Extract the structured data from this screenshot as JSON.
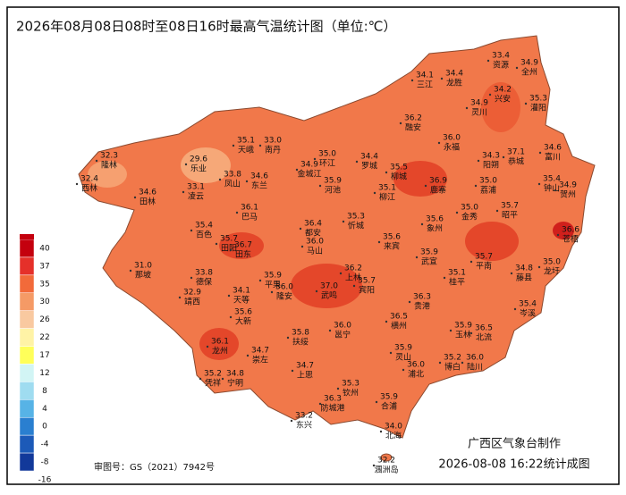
{
  "title": "2026年08月08日08时至08日16时最高气温统计图（单位:℃）",
  "legend": {
    "labels": [
      40,
      37,
      35,
      30,
      26,
      22,
      17,
      12,
      8,
      4,
      0,
      -4,
      -8,
      -16
    ],
    "colors": [
      "#c4000e",
      "#e5302a",
      "#f26a3a",
      "#f59a66",
      "#f9c9a0",
      "#fff3a6",
      "#ffff5a",
      "#d2f5f5",
      "#9fdcf0",
      "#57b3e6",
      "#2a7fd0",
      "#1c5ab8",
      "#12399a",
      "#0a2270"
    ]
  },
  "stations": [
    {
      "value": "33.4",
      "name": "资源"
    },
    {
      "value": "34.9",
      "name": "全州"
    },
    {
      "value": "34.1",
      "name": "三江"
    },
    {
      "value": "34.4",
      "name": "龙胜"
    },
    {
      "value": "34.2",
      "name": "兴安"
    },
    {
      "value": "34.9",
      "name": "灵川"
    },
    {
      "value": "35.3",
      "name": "灌阳"
    },
    {
      "value": "36.2",
      "name": "融安"
    },
    {
      "value": "36.0",
      "name": "永福"
    },
    {
      "value": "35.1",
      "name": "天峨"
    },
    {
      "value": "33.0",
      "name": "南丹"
    },
    {
      "value": "32.3",
      "name": "隆林"
    },
    {
      "value": "29.6",
      "name": "乐业"
    },
    {
      "value": "35.0",
      "name": "环江"
    },
    {
      "value": "34.4",
      "name": "罗城"
    },
    {
      "value": "35.5",
      "name": "柳城"
    },
    {
      "value": "33.8",
      "name": "凤山"
    },
    {
      "value": "34.6",
      "name": "东兰"
    },
    {
      "value": "34.9",
      "name": "金城江"
    },
    {
      "value": "37.1",
      "name": "恭城"
    },
    {
      "value": "34.6",
      "name": "富川"
    },
    {
      "value": "34.3",
      "name": "阳朔"
    },
    {
      "value": "36.9",
      "name": "鹿寨"
    },
    {
      "value": "35.0",
      "name": "荔浦"
    },
    {
      "value": "32.4",
      "name": "西林"
    },
    {
      "value": "33.1",
      "name": "凌云"
    },
    {
      "value": "35.9",
      "name": "河池"
    },
    {
      "value": "35.1",
      "name": "柳江"
    },
    {
      "value": "35.4",
      "name": "钟山"
    },
    {
      "value": "34.9",
      "name": "贺州"
    },
    {
      "value": "34.6",
      "name": "田林"
    },
    {
      "value": "36.1",
      "name": "巴马"
    },
    {
      "value": "35.0",
      "name": "金秀"
    },
    {
      "value": "35.7",
      "name": "昭平"
    },
    {
      "value": "35.3",
      "name": "忻城"
    },
    {
      "value": "35.6",
      "name": "象州"
    },
    {
      "value": "36.4",
      "name": "都安"
    },
    {
      "value": "35.4",
      "name": "百色"
    },
    {
      "value": "35.7",
      "name": "田阳"
    },
    {
      "value": "36.7",
      "name": "田东"
    },
    {
      "value": "36.0",
      "name": "马山"
    },
    {
      "value": "35.6",
      "name": "来宾"
    },
    {
      "value": "36.6",
      "name": "苍梧"
    },
    {
      "value": "35.9",
      "name": "武宣"
    },
    {
      "value": "35.7",
      "name": "平南"
    },
    {
      "value": "35.0",
      "name": "龙圩"
    },
    {
      "value": "34.8",
      "name": "藤县"
    },
    {
      "value": "31.0",
      "name": "那坡"
    },
    {
      "value": "33.8",
      "name": "德保"
    },
    {
      "value": "35.9",
      "name": "平果"
    },
    {
      "value": "36.0",
      "name": "隆安"
    },
    {
      "value": "36.2",
      "name": "上林"
    },
    {
      "value": "35.7",
      "name": "宾阳"
    },
    {
      "value": "35.1",
      "name": "桂平"
    },
    {
      "value": "34.1",
      "name": "天等"
    },
    {
      "value": "37.0",
      "name": "武鸣"
    },
    {
      "value": "32.9",
      "name": "靖西"
    },
    {
      "value": "36.3",
      "name": "贵港"
    },
    {
      "value": "35.6",
      "name": "大新"
    },
    {
      "value": "35.4",
      "name": "岑溪"
    },
    {
      "value": "36.0",
      "name": "邕宁"
    },
    {
      "value": "36.5",
      "name": "横州"
    },
    {
      "value": "35.9",
      "name": "玉林"
    },
    {
      "value": "36.5",
      "name": "北流"
    },
    {
      "value": "35.8",
      "name": "扶绥"
    },
    {
      "value": "36.1",
      "name": "龙州"
    },
    {
      "value": "34.7",
      "name": "崇左"
    },
    {
      "value": "35.9",
      "name": "灵山"
    },
    {
      "value": "35.2",
      "name": "博白"
    },
    {
      "value": "36.0",
      "name": "陆川"
    },
    {
      "value": "35.2",
      "name": "凭祥"
    },
    {
      "value": "34.8",
      "name": "宁明"
    },
    {
      "value": "34.7",
      "name": "上思"
    },
    {
      "value": "36.0",
      "name": "浦北"
    },
    {
      "value": "35.3",
      "name": "钦州"
    },
    {
      "value": "36.3",
      "name": "防城港"
    },
    {
      "value": "35.9",
      "name": "合浦"
    },
    {
      "value": "33.2",
      "name": "东兴"
    },
    {
      "value": "34.0",
      "name": "北海"
    },
    {
      "value": "32.2",
      "name": "涠洲岛"
    }
  ],
  "footer": {
    "maker": "广西区气象台制作",
    "time": "2026-08-08 16:22统计成图",
    "approval": "审图号：GS（2021）7942号"
  }
}
